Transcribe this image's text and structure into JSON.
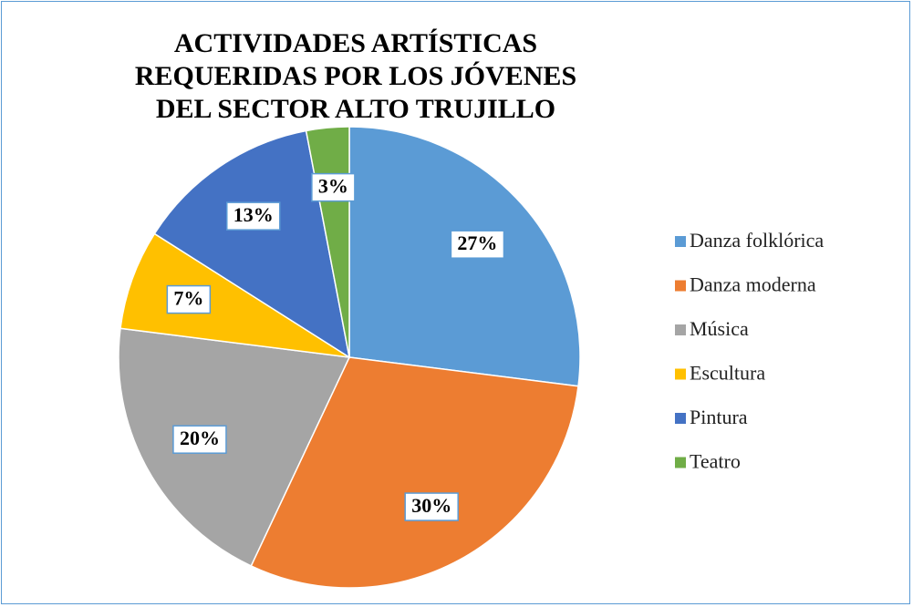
{
  "chart_data": {
    "type": "pie",
    "title": "ACTIVIDADES ARTÍSTICAS REQUERIDAS POR LOS JÓVENES DEL SECTOR ALTO TRUJILLO",
    "categories": [
      "Danza folklórica",
      "Danza moderna",
      "Música",
      "Escultura",
      "Pintura",
      "Teatro"
    ],
    "values": [
      27,
      30,
      20,
      7,
      13,
      3
    ],
    "value_labels": [
      "27%",
      "30%",
      "20%",
      "7%",
      "13%",
      "3%"
    ],
    "colors": [
      "#5b9bd5",
      "#ed7d31",
      "#a5a5a5",
      "#ffc000",
      "#4472c4",
      "#70ad47"
    ],
    "legend": "right"
  }
}
